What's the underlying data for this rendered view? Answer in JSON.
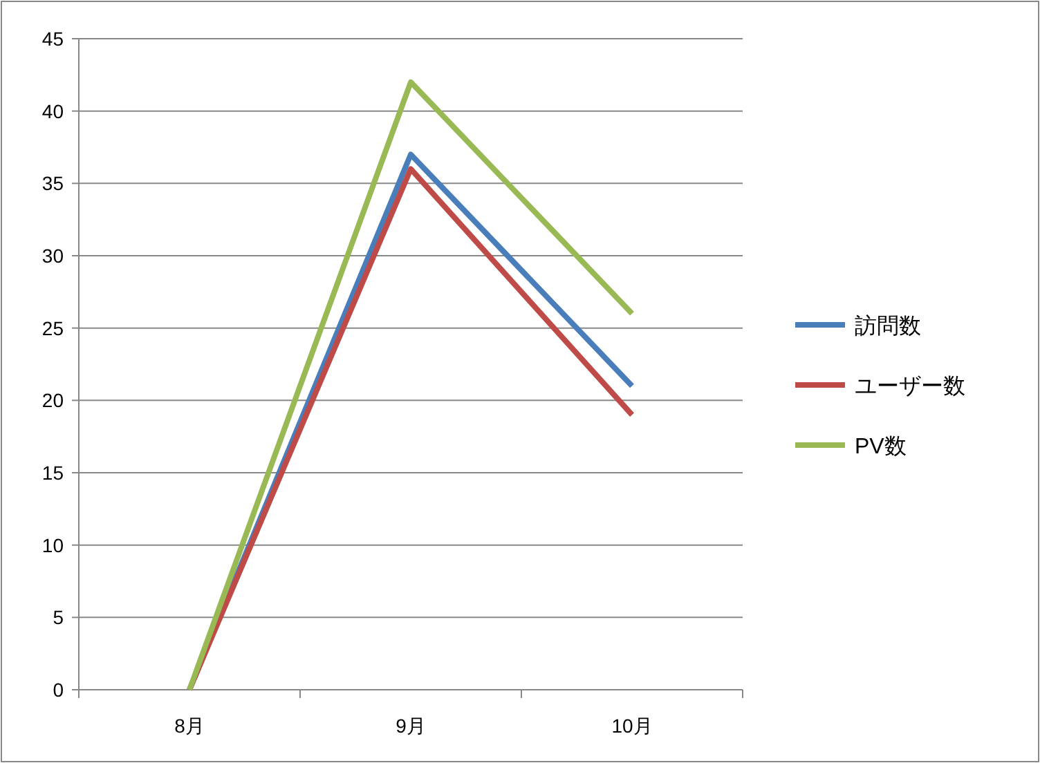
{
  "chart_data": {
    "type": "line",
    "categories": [
      "8月",
      "9月",
      "10月"
    ],
    "series": [
      {
        "name": "訪問数",
        "color": "#4a7ebb",
        "values": [
          0,
          37,
          21
        ]
      },
      {
        "name": "ユーザー数",
        "color": "#be4b48",
        "values": [
          0,
          36,
          19
        ]
      },
      {
        "name": "PV数",
        "color": "#98b954",
        "values": [
          0,
          42,
          26
        ]
      }
    ],
    "ylim": [
      0,
      45
    ],
    "yticks": [
      0,
      5,
      10,
      15,
      20,
      25,
      30,
      35,
      40,
      45
    ],
    "grid": "y",
    "legend": "right",
    "marker": "none",
    "line_style": "solid"
  }
}
